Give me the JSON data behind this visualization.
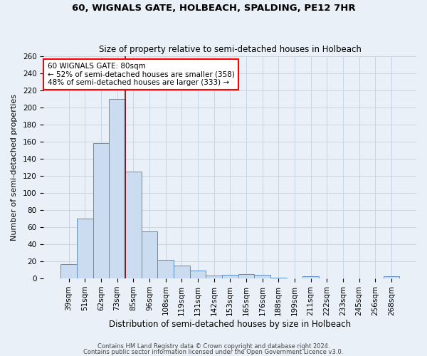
{
  "title": "60, WIGNALS GATE, HOLBEACH, SPALDING, PE12 7HR",
  "subtitle": "Size of property relative to semi-detached houses in Holbeach",
  "xlabel": "Distribution of semi-detached houses by size in Holbeach",
  "ylabel": "Number of semi-detached properties",
  "footnote1": "Contains HM Land Registry data © Crown copyright and database right 2024.",
  "footnote2": "Contains public sector information licensed under the Open Government Licence v3.0.",
  "categories": [
    "39sqm",
    "51sqm",
    "62sqm",
    "73sqm",
    "85sqm",
    "96sqm",
    "108sqm",
    "119sqm",
    "131sqm",
    "142sqm",
    "153sqm",
    "165sqm",
    "176sqm",
    "188sqm",
    "199sqm",
    "211sqm",
    "222sqm",
    "233sqm",
    "245sqm",
    "256sqm",
    "268sqm"
  ],
  "values": [
    16,
    70,
    158,
    210,
    125,
    55,
    21,
    15,
    9,
    3,
    4,
    5,
    4,
    1,
    0,
    2,
    0,
    0,
    0,
    0,
    2
  ],
  "bar_color": "#ccdcf0",
  "bar_edge_color": "#5b8ec4",
  "highlight_bar_index": -1,
  "annotation_text": "60 WIGNALS GATE: 80sqm\n← 52% of semi-detached houses are smaller (358)\n48% of semi-detached houses are larger (333) →",
  "annotation_box_color": "white",
  "annotation_box_edgecolor": "red",
  "red_line_x": 4.0,
  "ylim": [
    0,
    260
  ],
  "yticks": [
    0,
    20,
    40,
    60,
    80,
    100,
    120,
    140,
    160,
    180,
    200,
    220,
    240,
    260
  ],
  "grid_color": "#c5d5e8",
  "bg_color": "#eaf0f7",
  "title_fontsize": 9.5,
  "subtitle_fontsize": 8.5,
  "xlabel_fontsize": 8.5,
  "ylabel_fontsize": 8,
  "tick_fontsize": 7.5,
  "annotation_fontsize": 7.5,
  "footnote_fontsize": 6
}
